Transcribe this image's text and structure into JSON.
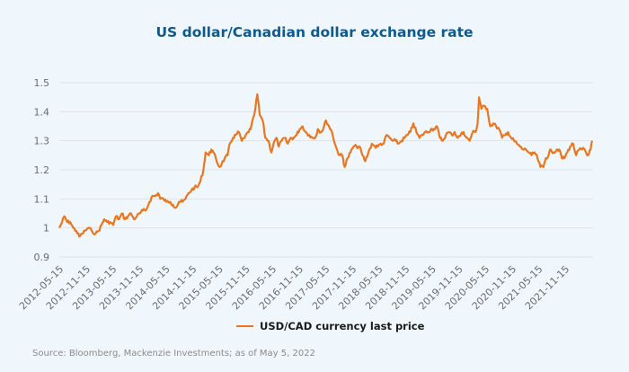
{
  "chart_data": {
    "type": "line",
    "title": "US dollar/Canadian dollar exchange rate",
    "xlabel": "",
    "ylabel": "",
    "ylim": [
      0.9,
      1.5
    ],
    "yticks": [
      "1.5",
      "1.4",
      "1.3",
      "1.2",
      "1.1",
      "1",
      "0.9"
    ],
    "ytick_values": [
      1.5,
      1.4,
      1.3,
      1.2,
      1.1,
      1.0,
      0.9
    ],
    "xticks": [
      "2012-05-15",
      "2012-11-15",
      "2013-05-15",
      "2013-11-15",
      "2014-05-15",
      "2014-11-15",
      "2015-05-15",
      "2015-11-15",
      "2016-05-15",
      "2016-11-15",
      "2017-05-15",
      "2017-11-15",
      "2018-05-15",
      "2018-11-15",
      "2019-05-15",
      "2019-11-15",
      "2020-05-15",
      "2020-11-15",
      "2021-05-15",
      "2021-11-15"
    ],
    "x_range": [
      "2012-05-01",
      "2022-05-05"
    ],
    "grid": true,
    "legend_position": "bottom-center",
    "series": [
      {
        "name": "USD/CAD currency last price",
        "color": "#e87722",
        "points": [
          [
            "2012-05-01",
            1.0
          ],
          [
            "2012-05-20",
            1.02
          ],
          [
            "2012-06-05",
            1.04
          ],
          [
            "2012-06-25",
            1.02
          ],
          [
            "2012-07-15",
            1.02
          ],
          [
            "2012-08-05",
            1.0
          ],
          [
            "2012-08-25",
            0.99
          ],
          [
            "2012-09-15",
            0.97
          ],
          [
            "2012-10-05",
            0.98
          ],
          [
            "2012-10-25",
            0.99
          ],
          [
            "2012-11-15",
            1.0
          ],
          [
            "2012-12-10",
            0.99
          ],
          [
            "2013-01-05",
            0.98
          ],
          [
            "2013-01-25",
            0.99
          ],
          [
            "2013-02-15",
            1.01
          ],
          [
            "2013-03-05",
            1.03
          ],
          [
            "2013-03-25",
            1.02
          ],
          [
            "2013-04-15",
            1.02
          ],
          [
            "2013-05-05",
            1.01
          ],
          [
            "2013-05-25",
            1.04
          ],
          [
            "2013-06-15",
            1.03
          ],
          [
            "2013-07-05",
            1.05
          ],
          [
            "2013-07-25",
            1.03
          ],
          [
            "2013-08-15",
            1.04
          ],
          [
            "2013-09-05",
            1.05
          ],
          [
            "2013-09-25",
            1.03
          ],
          [
            "2013-10-15",
            1.04
          ],
          [
            "2013-11-05",
            1.05
          ],
          [
            "2013-11-25",
            1.06
          ],
          [
            "2013-12-15",
            1.06
          ],
          [
            "2014-01-10",
            1.09
          ],
          [
            "2014-01-30",
            1.11
          ],
          [
            "2014-02-20",
            1.11
          ],
          [
            "2014-03-10",
            1.12
          ],
          [
            "2014-03-25",
            1.1
          ],
          [
            "2014-04-15",
            1.1
          ],
          [
            "2014-05-05",
            1.09
          ],
          [
            "2014-06-01",
            1.09
          ],
          [
            "2014-06-20",
            1.08
          ],
          [
            "2014-07-10",
            1.07
          ],
          [
            "2014-08-01",
            1.09
          ],
          [
            "2014-08-25",
            1.09
          ],
          [
            "2014-09-15",
            1.1
          ],
          [
            "2014-10-05",
            1.12
          ],
          [
            "2014-10-25",
            1.13
          ],
          [
            "2014-11-15",
            1.14
          ],
          [
            "2014-12-05",
            1.14
          ],
          [
            "2014-12-25",
            1.16
          ],
          [
            "2015-01-15",
            1.2
          ],
          [
            "2015-01-30",
            1.26
          ],
          [
            "2015-02-20",
            1.25
          ],
          [
            "2015-03-10",
            1.27
          ],
          [
            "2015-03-25",
            1.26
          ],
          [
            "2015-04-15",
            1.23
          ],
          [
            "2015-05-05",
            1.21
          ],
          [
            "2015-05-20",
            1.22
          ],
          [
            "2015-06-10",
            1.24
          ],
          [
            "2015-06-30",
            1.25
          ],
          [
            "2015-07-15",
            1.29
          ],
          [
            "2015-08-05",
            1.31
          ],
          [
            "2015-08-25",
            1.32
          ],
          [
            "2015-09-15",
            1.33
          ],
          [
            "2015-10-05",
            1.3
          ],
          [
            "2015-10-25",
            1.31
          ],
          [
            "2015-11-15",
            1.33
          ],
          [
            "2015-12-05",
            1.34
          ],
          [
            "2015-12-30",
            1.39
          ],
          [
            "2016-01-20",
            1.46
          ],
          [
            "2016-02-05",
            1.39
          ],
          [
            "2016-02-25",
            1.37
          ],
          [
            "2016-03-15",
            1.31
          ],
          [
            "2016-04-05",
            1.3
          ],
          [
            "2016-04-25",
            1.26
          ],
          [
            "2016-05-10",
            1.29
          ],
          [
            "2016-05-30",
            1.31
          ],
          [
            "2016-06-15",
            1.28
          ],
          [
            "2016-07-05",
            1.3
          ],
          [
            "2016-07-25",
            1.31
          ],
          [
            "2016-08-15",
            1.29
          ],
          [
            "2016-09-05",
            1.31
          ],
          [
            "2016-09-25",
            1.31
          ],
          [
            "2016-10-15",
            1.32
          ],
          [
            "2016-11-05",
            1.34
          ],
          [
            "2016-11-25",
            1.35
          ],
          [
            "2016-12-15",
            1.33
          ],
          [
            "2017-01-10",
            1.32
          ],
          [
            "2017-01-30",
            1.31
          ],
          [
            "2017-02-20",
            1.31
          ],
          [
            "2017-03-10",
            1.34
          ],
          [
            "2017-03-30",
            1.33
          ],
          [
            "2017-04-15",
            1.34
          ],
          [
            "2017-05-05",
            1.37
          ],
          [
            "2017-05-25",
            1.35
          ],
          [
            "2017-06-15",
            1.33
          ],
          [
            "2017-07-05",
            1.29
          ],
          [
            "2017-07-25",
            1.26
          ],
          [
            "2017-08-10",
            1.25
          ],
          [
            "2017-08-25",
            1.25
          ],
          [
            "2017-09-10",
            1.21
          ],
          [
            "2017-09-30",
            1.24
          ],
          [
            "2017-10-20",
            1.26
          ],
          [
            "2017-11-10",
            1.28
          ],
          [
            "2017-11-30",
            1.28
          ],
          [
            "2017-12-20",
            1.28
          ],
          [
            "2018-01-10",
            1.25
          ],
          [
            "2018-01-30",
            1.23
          ],
          [
            "2018-02-20",
            1.26
          ],
          [
            "2018-03-15",
            1.29
          ],
          [
            "2018-04-05",
            1.28
          ],
          [
            "2018-04-25",
            1.28
          ],
          [
            "2018-05-15",
            1.29
          ],
          [
            "2018-06-05",
            1.29
          ],
          [
            "2018-06-25",
            1.32
          ],
          [
            "2018-07-15",
            1.31
          ],
          [
            "2018-08-05",
            1.3
          ],
          [
            "2018-08-25",
            1.3
          ],
          [
            "2018-09-15",
            1.29
          ],
          [
            "2018-10-05",
            1.3
          ],
          [
            "2018-10-25",
            1.31
          ],
          [
            "2018-11-15",
            1.32
          ],
          [
            "2018-12-05",
            1.33
          ],
          [
            "2018-12-25",
            1.36
          ],
          [
            "2019-01-15",
            1.33
          ],
          [
            "2019-02-05",
            1.31
          ],
          [
            "2019-02-25",
            1.32
          ],
          [
            "2019-03-15",
            1.33
          ],
          [
            "2019-04-05",
            1.33
          ],
          [
            "2019-04-25",
            1.34
          ],
          [
            "2019-05-15",
            1.34
          ],
          [
            "2019-06-05",
            1.35
          ],
          [
            "2019-06-25",
            1.31
          ],
          [
            "2019-07-15",
            1.3
          ],
          [
            "2019-08-05",
            1.32
          ],
          [
            "2019-08-25",
            1.33
          ],
          [
            "2019-09-15",
            1.32
          ],
          [
            "2019-10-05",
            1.33
          ],
          [
            "2019-10-25",
            1.31
          ],
          [
            "2019-11-15",
            1.32
          ],
          [
            "2019-12-05",
            1.33
          ],
          [
            "2019-12-25",
            1.31
          ],
          [
            "2020-01-15",
            1.3
          ],
          [
            "2020-02-05",
            1.33
          ],
          [
            "2020-02-25",
            1.33
          ],
          [
            "2020-03-10",
            1.36
          ],
          [
            "2020-03-20",
            1.45
          ],
          [
            "2020-04-05",
            1.41
          ],
          [
            "2020-04-25",
            1.42
          ],
          [
            "2020-05-15",
            1.41
          ],
          [
            "2020-06-05",
            1.35
          ],
          [
            "2020-06-25",
            1.36
          ],
          [
            "2020-07-15",
            1.35
          ],
          [
            "2020-08-05",
            1.34
          ],
          [
            "2020-08-25",
            1.31
          ],
          [
            "2020-09-15",
            1.32
          ],
          [
            "2020-10-05",
            1.33
          ],
          [
            "2020-10-25",
            1.31
          ],
          [
            "2020-11-15",
            1.3
          ],
          [
            "2020-12-05",
            1.29
          ],
          [
            "2020-12-25",
            1.28
          ],
          [
            "2021-01-15",
            1.27
          ],
          [
            "2021-02-05",
            1.27
          ],
          [
            "2021-02-25",
            1.26
          ],
          [
            "2021-03-15",
            1.25
          ],
          [
            "2021-04-05",
            1.26
          ],
          [
            "2021-04-25",
            1.24
          ],
          [
            "2021-05-15",
            1.21
          ],
          [
            "2021-06-05",
            1.21
          ],
          [
            "2021-06-20",
            1.24
          ],
          [
            "2021-07-10",
            1.25
          ],
          [
            "2021-07-25",
            1.27
          ],
          [
            "2021-08-15",
            1.26
          ],
          [
            "2021-09-05",
            1.27
          ],
          [
            "2021-09-20",
            1.27
          ],
          [
            "2021-10-10",
            1.24
          ],
          [
            "2021-10-25",
            1.24
          ],
          [
            "2021-11-15",
            1.26
          ],
          [
            "2021-12-05",
            1.28
          ],
          [
            "2021-12-25",
            1.29
          ],
          [
            "2022-01-15",
            1.25
          ],
          [
            "2022-02-05",
            1.27
          ],
          [
            "2022-02-25",
            1.27
          ],
          [
            "2022-03-15",
            1.27
          ],
          [
            "2022-04-01",
            1.25
          ],
          [
            "2022-04-15",
            1.26
          ],
          [
            "2022-04-25",
            1.27
          ],
          [
            "2022-05-05",
            1.3
          ]
        ]
      }
    ],
    "source": "Source: Bloomberg, Mackenzie Investments; as of May 5, 2022"
  }
}
